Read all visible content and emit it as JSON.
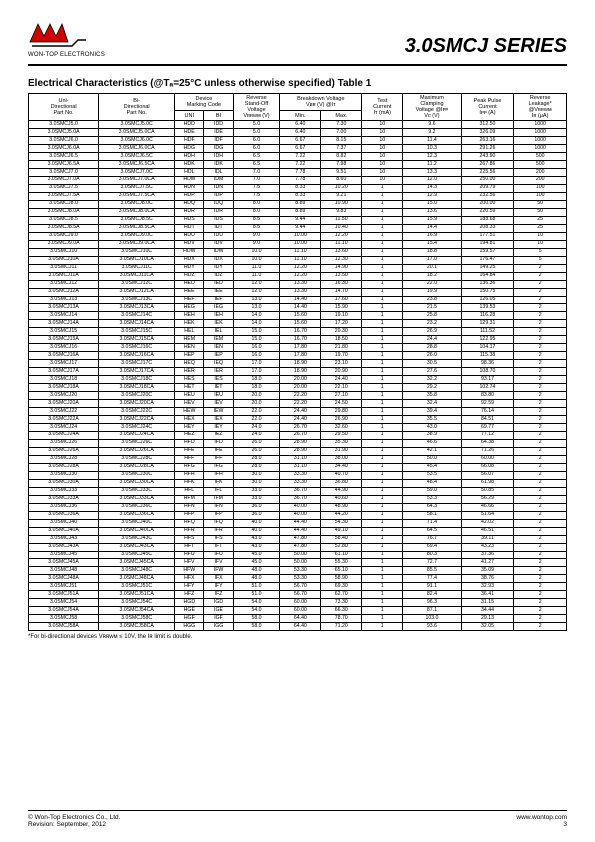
{
  "header": {
    "logo_sub": "WON-TOP ELECTRONICS",
    "series_title": "3.0SMCJ SERIES"
  },
  "section_title": "Electrical Characteristics (@Tₐ=25°C unless otherwise specified) Table 1",
  "columns": {
    "uni": "Uni-\nDirectional\nPart No.",
    "bi": "Bi-\nDirectional\nPart No.",
    "device": "Device\nMarking Code",
    "device_uni": "UNI",
    "device_bi": "BI",
    "vrwm": "Reverse\nStand-Off\nVoltage\nVʀʀᴡᴍ (V)",
    "vbr": "Breakdown Voltage\nVʙʀ (V) @Iᴛ",
    "vbr_min": "Min.",
    "vbr_max": "Max.",
    "it": "Test\nCurrent\nIᴛ (mA)",
    "vc": "Maximum\nClamping\nVoltage @Iᴘᴘ\nVᴄ (V)",
    "ipp": "Peak Pulse\nCurrent\nIᴘᴘ (A)",
    "ir": "Reverse\nLeakage*\n@Vʀʀᴡᴍ\nIʀ (µA)"
  },
  "group_breaks": [
    4,
    8,
    12,
    16,
    20,
    24,
    28,
    32,
    36,
    40,
    44,
    48,
    52,
    56,
    60,
    64,
    68,
    72
  ],
  "rows": [
    [
      "3.0SMCJ5.0",
      "3.0SMCJ5.0C",
      "HDD",
      "IDD",
      "5.0",
      "6.40",
      "7.30",
      "10",
      "9.6",
      "312.50",
      "1000"
    ],
    [
      "3.0SMCJ5.0A",
      "3.0SMCJ5.0CA",
      "HDE",
      "IDE",
      "5.0",
      "6.40",
      "7.00",
      "10",
      "9.2",
      "326.09",
      "1000"
    ],
    [
      "3.0SMCJ6.0",
      "3.0SMCJ6.0C",
      "HDF",
      "IDF",
      "6.0",
      "6.67",
      "8.15",
      "10",
      "11.4",
      "263.16",
      "1000"
    ],
    [
      "3.0SMCJ6.0A",
      "3.0SMCJ6.0CA",
      "HDG",
      "IDG",
      "6.0",
      "6.67",
      "7.37",
      "10",
      "10.3",
      "291.26",
      "1000"
    ],
    [
      "3.0SMCJ6.5",
      "3.0SMCJ6.5C",
      "HDH",
      "IDH",
      "6.5",
      "7.22",
      "8.82",
      "10",
      "12.3",
      "243.90",
      "500"
    ],
    [
      "3.0SMCJ6.5A",
      "3.0SMCJ6.5CA",
      "HDK",
      "IDK",
      "6.5",
      "7.22",
      "7.98",
      "10",
      "11.2",
      "267.86",
      "500"
    ],
    [
      "3.0SMCJ7.0",
      "3.0SMCJ7.0C",
      "HDL",
      "IDL",
      "7.0",
      "7.78",
      "9.51",
      "10",
      "13.3",
      "225.56",
      "200"
    ],
    [
      "3.0SMCJ7.0A",
      "3.0SMCJ7.0CA",
      "HDM",
      "IDM",
      "7.0",
      "7.78",
      "8.60",
      "10",
      "12.0",
      "250.00",
      "200"
    ],
    [
      "3.0SMCJ7.5",
      "3.0SMCJ7.5C",
      "HDN",
      "IDN",
      "7.5",
      "8.33",
      "10.20",
      "1",
      "14.3",
      "209.79",
      "100"
    ],
    [
      "3.0SMCJ7.5A",
      "3.0SMCJ7.5CA",
      "HDP",
      "IDP",
      "7.5",
      "8.33",
      "9.21",
      "1",
      "12.9",
      "232.56",
      "100"
    ],
    [
      "3.0SMCJ8.0",
      "3.0SMCJ8.0C",
      "HDQ",
      "IDQ",
      "8.0",
      "8.89",
      "10.90",
      "1",
      "15.0",
      "200.00",
      "50"
    ],
    [
      "3.0SMCJ8.0A",
      "3.0SMCJ8.0CA",
      "HDR",
      "IDR",
      "8.0",
      "8.89",
      "9.83",
      "1",
      "13.6",
      "220.59",
      "50"
    ],
    [
      "3.0SMCJ8.5",
      "3.0SMCJ8.5C",
      "HDS",
      "IDS",
      "8.5",
      "9.44",
      "11.50",
      "1",
      "15.9",
      "188.68",
      "25"
    ],
    [
      "3.0SMCJ8.5A",
      "3.0SMCJ8.5CA",
      "HDT",
      "IDT",
      "8.5",
      "9.44",
      "10.40",
      "1",
      "14.4",
      "208.33",
      "25"
    ],
    [
      "3.0SMCJ9.0",
      "3.0SMCJ9.0C",
      "HDU",
      "IDU",
      "9.0",
      "10.00",
      "12.20",
      "1",
      "16.9",
      "177.51",
      "10"
    ],
    [
      "3.0SMCJ9.0A",
      "3.0SMCJ9.0CA",
      "HDV",
      "IDV",
      "9.0",
      "10.00",
      "11.10",
      "1",
      "15.4",
      "194.81",
      "10"
    ],
    [
      "3.0SMCJ10",
      "3.0SMCJ10C",
      "HDW",
      "IDW",
      "10.0",
      "11.10",
      "13.60",
      "1",
      "18.8",
      "159.57",
      "5"
    ],
    [
      "3.0SMCJ10A",
      "3.0SMCJ10CA",
      "HDX",
      "IDX",
      "10.0",
      "11.10",
      "12.30",
      "1",
      "17.0",
      "176.47",
      "5"
    ],
    [
      "3.0SMCJ11",
      "3.0SMCJ11C",
      "HDY",
      "IDY",
      "11.0",
      "12.20",
      "14.90",
      "1",
      "20.1",
      "149.25",
      "2"
    ],
    [
      "3.0SMCJ11A",
      "3.0SMCJ11CA",
      "HDZ",
      "IDZ",
      "11.0",
      "12.20",
      "13.50",
      "1",
      "18.2",
      "164.84",
      "2"
    ],
    [
      "3.0SMCJ12",
      "3.0SMCJ12C",
      "HED",
      "IED",
      "12.0",
      "13.30",
      "16.30",
      "1",
      "22.0",
      "136.36",
      "2"
    ],
    [
      "3.0SMCJ12A",
      "3.0SMCJ12CA",
      "HEE",
      "IEE",
      "12.0",
      "13.30",
      "14.70",
      "1",
      "19.9",
      "150.75",
      "2"
    ],
    [
      "3.0SMCJ13",
      "3.0SMCJ13C",
      "HEF",
      "IEF",
      "13.0",
      "14.40",
      "17.60",
      "1",
      "23.8",
      "126.05",
      "2"
    ],
    [
      "3.0SMCJ13A",
      "3.0SMCJ13CA",
      "HEG",
      "IEG",
      "13.0",
      "14.40",
      "15.90",
      "1",
      "21.5",
      "139.53",
      "2"
    ],
    [
      "3.0SMCJ14",
      "3.0SMCJ14C",
      "HEH",
      "IEH",
      "14.0",
      "15.60",
      "19.10",
      "1",
      "25.8",
      "116.28",
      "2"
    ],
    [
      "3.0SMCJ14A",
      "3.0SMCJ14CA",
      "HEK",
      "IEK",
      "14.0",
      "15.60",
      "17.20",
      "1",
      "23.2",
      "129.31",
      "2"
    ],
    [
      "3.0SMCJ15",
      "3.0SMCJ15C",
      "HEL",
      "IEL",
      "15.0",
      "16.70",
      "20.30",
      "1",
      "26.9",
      "111.52",
      "2"
    ],
    [
      "3.0SMCJ15A",
      "3.0SMCJ15CA",
      "HEM",
      "IEM",
      "15.0",
      "16.70",
      "18.50",
      "1",
      "24.4",
      "122.95",
      "2"
    ],
    [
      "3.0SMCJ16",
      "3.0SMCJ16C",
      "HEN",
      "IEN",
      "16.0",
      "17.80",
      "21.80",
      "1",
      "28.8",
      "104.17",
      "2"
    ],
    [
      "3.0SMCJ16A",
      "3.0SMCJ16CA",
      "HEP",
      "IEP",
      "16.0",
      "17.80",
      "19.70",
      "1",
      "26.0",
      "115.38",
      "2"
    ],
    [
      "3.0SMCJ17",
      "3.0SMCJ17C",
      "HEQ",
      "IEQ",
      "17.0",
      "18.90",
      "23.10",
      "1",
      "30.5",
      "98.36",
      "2"
    ],
    [
      "3.0SMCJ17A",
      "3.0SMCJ17CA",
      "HER",
      "IER",
      "17.0",
      "18.90",
      "20.90",
      "1",
      "27.6",
      "108.70",
      "2"
    ],
    [
      "3.0SMCJ18",
      "3.0SMCJ18C",
      "HES",
      "IES",
      "18.0",
      "20.00",
      "24.40",
      "1",
      "32.2",
      "93.17",
      "2"
    ],
    [
      "3.0SMCJ18A",
      "3.0SMCJ18CA",
      "HET",
      "IET",
      "18.0",
      "20.00",
      "22.10",
      "1",
      "29.2",
      "102.74",
      "2"
    ],
    [
      "3.0SMCJ20",
      "3.0SMCJ20C",
      "HEU",
      "IEU",
      "20.0",
      "22.20",
      "27.10",
      "1",
      "35.8",
      "83.80",
      "2"
    ],
    [
      "3.0SMCJ20A",
      "3.0SMCJ20CA",
      "HEV",
      "IEV",
      "20.0",
      "22.20",
      "24.50",
      "1",
      "32.4",
      "92.59",
      "2"
    ],
    [
      "3.0SMCJ22",
      "3.0SMCJ22C",
      "HEW",
      "IEW",
      "22.0",
      "24.40",
      "29.80",
      "1",
      "39.4",
      "76.14",
      "2"
    ],
    [
      "3.0SMCJ22A",
      "3.0SMCJ22CA",
      "HEX",
      "IEX",
      "22.0",
      "24.40",
      "26.90",
      "1",
      "35.5",
      "84.51",
      "2"
    ],
    [
      "3.0SMCJ24",
      "3.0SMCJ24C",
      "HEY",
      "IEY",
      "24.0",
      "26.70",
      "32.60",
      "1",
      "43.0",
      "69.77",
      "2"
    ],
    [
      "3.0SMCJ24A",
      "3.0SMCJ24CA",
      "HEZ",
      "IEZ",
      "24.0",
      "26.70",
      "29.50",
      "1",
      "38.9",
      "77.12",
      "2"
    ],
    [
      "3.0SMCJ26",
      "3.0SMCJ26C",
      "HFD",
      "IFD",
      "26.0",
      "28.90",
      "35.30",
      "1",
      "46.6",
      "64.38",
      "2"
    ],
    [
      "3.0SMCJ26A",
      "3.0SMCJ26CA",
      "HFE",
      "IFE",
      "26.0",
      "28.90",
      "31.90",
      "1",
      "42.1",
      "71.26",
      "2"
    ],
    [
      "3.0SMCJ28",
      "3.0SMCJ28C",
      "HFF",
      "IFF",
      "28.0",
      "31.10",
      "38.00",
      "1",
      "50.0",
      "60.00",
      "2"
    ],
    [
      "3.0SMCJ28A",
      "3.0SMCJ28CA",
      "HFG",
      "IFG",
      "28.0",
      "31.10",
      "34.40",
      "1",
      "45.4",
      "66.08",
      "2"
    ],
    [
      "3.0SMCJ30",
      "3.0SMCJ30C",
      "HFH",
      "IFH",
      "30.0",
      "33.30",
      "40.70",
      "1",
      "53.5",
      "56.07",
      "2"
    ],
    [
      "3.0SMCJ30A",
      "3.0SMCJ30CA",
      "HFK",
      "IFK",
      "30.0",
      "33.30",
      "36.80",
      "1",
      "48.4",
      "61.98",
      "2"
    ],
    [
      "3.0SMCJ33",
      "3.0SMCJ33C",
      "HFL",
      "IFL",
      "33.0",
      "36.70",
      "44.90",
      "1",
      "59.0",
      "50.85",
      "2"
    ],
    [
      "3.0SMCJ33A",
      "3.0SMCJ33CA",
      "HFM",
      "IFM",
      "33.0",
      "36.70",
      "40.60",
      "1",
      "53.3",
      "56.29",
      "2"
    ],
    [
      "3.0SMCJ36",
      "3.0SMCJ36C",
      "HFN",
      "IFN",
      "36.0",
      "40.00",
      "48.90",
      "1",
      "64.3",
      "46.66",
      "2"
    ],
    [
      "3.0SMCJ36A",
      "3.0SMCJ36CA",
      "HFP",
      "IFP",
      "36.0",
      "40.00",
      "44.20",
      "1",
      "58.1",
      "51.64",
      "2"
    ],
    [
      "3.0SMCJ40",
      "3.0SMCJ40C",
      "HFQ",
      "IFQ",
      "40.0",
      "44.40",
      "54.30",
      "1",
      "71.4",
      "42.02",
      "2"
    ],
    [
      "3.0SMCJ40A",
      "3.0SMCJ40CA",
      "HFR",
      "IFR",
      "40.0",
      "44.40",
      "49.10",
      "1",
      "64.5",
      "46.51",
      "2"
    ],
    [
      "3.0SMCJ43",
      "3.0SMCJ43C",
      "HFS",
      "IFS",
      "43.0",
      "47.80",
      "58.40",
      "1",
      "76.7",
      "39.11",
      "2"
    ],
    [
      "3.0SMCJ43A",
      "3.0SMCJ43CA",
      "HFT",
      "IFT",
      "43.0",
      "47.80",
      "52.80",
      "1",
      "69.4",
      "43.23",
      "2"
    ],
    [
      "3.0SMCJ45",
      "3.0SMCJ45C",
      "HFU",
      "IFU",
      "45.0",
      "50.00",
      "61.10",
      "1",
      "80.3",
      "37.36",
      "2"
    ],
    [
      "3.0SMCJ45A",
      "3.0SMCJ45CA",
      "HFV",
      "IFV",
      "45.0",
      "50.00",
      "55.30",
      "1",
      "72.7",
      "41.27",
      "2"
    ],
    [
      "3.0SMCJ48",
      "3.0SMCJ48C",
      "HFW",
      "IFW",
      "48.0",
      "53.30",
      "65.10",
      "1",
      "85.5",
      "35.09",
      "2"
    ],
    [
      "3.0SMCJ48A",
      "3.0SMCJ48CA",
      "HFX",
      "IFX",
      "48.0",
      "53.30",
      "58.90",
      "1",
      "77.4",
      "38.76",
      "2"
    ],
    [
      "3.0SMCJ51",
      "3.0SMCJ51C",
      "HFY",
      "IFY",
      "51.0",
      "56.70",
      "69.30",
      "1",
      "91.1",
      "32.93",
      "2"
    ],
    [
      "3.0SMCJ51A",
      "3.0SMCJ51CA",
      "HFZ",
      "IFZ",
      "51.0",
      "56.70",
      "62.70",
      "1",
      "82.4",
      "36.41",
      "2"
    ],
    [
      "3.0SMCJ54",
      "3.0SMCJ54C",
      "HGD",
      "IGD",
      "54.0",
      "60.00",
      "73.30",
      "1",
      "96.3",
      "31.15",
      "2"
    ],
    [
      "3.0SMCJ54A",
      "3.0SMCJ54CA",
      "HGE",
      "IGE",
      "54.0",
      "60.00",
      "66.30",
      "1",
      "87.1",
      "34.44",
      "2"
    ],
    [
      "3.0SMCJ58",
      "3.0SMCJ58C",
      "HGF",
      "IGF",
      "58.0",
      "64.40",
      "78.70",
      "1",
      "103.0",
      "29.13",
      "2"
    ],
    [
      "3.0SMCJ58A",
      "3.0SMCJ58CA",
      "HGG",
      "IGG",
      "58.0",
      "64.40",
      "71.20",
      "1",
      "93.6",
      "32.05",
      "2"
    ]
  ],
  "footnote": "*For bi-directional devices Vʀʀᴡᴍ ≤ 10V, the Iʀ limit is double.",
  "footer": {
    "left1": "© Won-Top Electronics Co., Ltd.",
    "left2": "Revision: September, 2012",
    "right1": "www.wontop.com",
    "right2": "3"
  },
  "col_widths": [
    "12%",
    "13%",
    "5%",
    "5%",
    "8%",
    "7%",
    "7%",
    "7%",
    "10%",
    "9%",
    "9%"
  ]
}
